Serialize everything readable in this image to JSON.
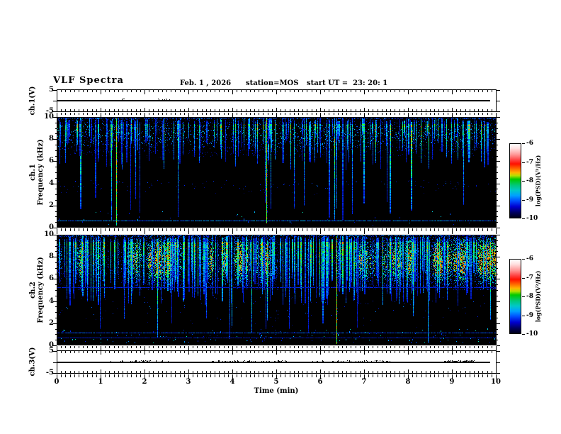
{
  "header": {
    "title": "VLF Spectra",
    "date": "Feb. 1 , 2026",
    "station": "station=MOS",
    "start_ut": "start UT =  23: 20: 1"
  },
  "x_axis": {
    "label": "Time (min)",
    "min": 0,
    "max": 10,
    "tick_labels": [
      "0",
      "1",
      "2",
      "3",
      "4",
      "5",
      "6",
      "7",
      "8",
      "9",
      "10"
    ],
    "minor_step_min": 0.1
  },
  "colorbar": {
    "label": "log(PSD)(V²/Hz)",
    "tick_labels": [
      "-6",
      "-7",
      "-8",
      "-9",
      "-10"
    ],
    "range": [
      -6,
      -10
    ],
    "gradient_stops": [
      [
        0,
        "#ffffff"
      ],
      [
        6,
        "#ffe2e2"
      ],
      [
        14,
        "#ff9c9c"
      ],
      [
        22,
        "#ff4040"
      ],
      [
        27,
        "#ff1000"
      ],
      [
        33,
        "#ff6000"
      ],
      [
        39,
        "#ffb400"
      ],
      [
        43,
        "#b4e000"
      ],
      [
        48,
        "#00c800"
      ],
      [
        56,
        "#00c87a"
      ],
      [
        63,
        "#00c8c8"
      ],
      [
        70,
        "#00a0ff"
      ],
      [
        77,
        "#0050ff"
      ],
      [
        85,
        "#0000d0"
      ],
      [
        93,
        "#000060"
      ],
      [
        100,
        "#000018"
      ]
    ]
  },
  "panels": {
    "ch1v": {
      "name": "ch.1(V)",
      "y_tick_labels": [
        "5",
        "-5"
      ],
      "y_range_V": [
        -5,
        5
      ]
    },
    "spec1": {
      "line1": "ch.1",
      "line2": "Frequency (kHz)",
      "y_tick_labels": [
        "10",
        "8",
        "6",
        "4",
        "2",
        "0"
      ],
      "y_range_kHz": [
        0,
        10
      ]
    },
    "spec2": {
      "line1": "ch.2",
      "line2": "Frequency (kHz)",
      "y_tick_labels": [
        "10",
        "8",
        "6",
        "4",
        "2",
        "0"
      ],
      "y_range_kHz": [
        0,
        10
      ]
    },
    "ch3v": {
      "name": "ch.3(V)",
      "y_tick_labels": [
        "5",
        "-5"
      ],
      "y_range_V": [
        -5,
        5
      ]
    }
  },
  "chart_data": [
    {
      "type": "line",
      "name": "ch.1 voltage waveform",
      "x_range_min": [
        0,
        10
      ],
      "y_range_V": [
        -5,
        5
      ],
      "value_V": 0,
      "trace_end_min": 9.87,
      "seed": 3,
      "blips": 12,
      "blip_zones_min": [
        [
          1.3,
          1.6
        ],
        [
          2.3,
          2.6
        ]
      ]
    },
    {
      "type": "heatmap",
      "name": "ch.1 VLF spectrogram",
      "x_range_min": [
        0,
        10
      ],
      "y_range_kHz": [
        0,
        10
      ],
      "z_label": "log(PSD)(V²/Hz)",
      "z_range": [
        -10,
        -6
      ],
      "background_z": -10,
      "render": {
        "seed": 20260201,
        "streaks": 185,
        "streak_bottom_kHz": [
          5.2,
          8.6
        ],
        "deep_streak_prob": 0.1,
        "strength": [
          0.35,
          1.0
        ],
        "speckle": {
          "band_kHz": [
            6.3,
            9.95
          ],
          "density": 0.12,
          "amp": 0.5,
          "col_mod": false
        },
        "speckle2": {
          "band_kHz": [
            2.8,
            4.3
          ],
          "density": 0.018,
          "amp": 0.32,
          "col_mod": false
        },
        "h_lines": [
          {
            "kHz": 0.55,
            "strength": 0.42
          }
        ],
        "events": [
          {
            "t_min": 1.34,
            "bottom_kHz": 0.1,
            "strength": 0.95
          },
          {
            "t_min": 4.76,
            "bottom_kHz": 0.3,
            "strength": 0.95
          },
          {
            "t_min": 6.35,
            "bottom_kHz": 1.7,
            "strength": 0.5
          }
        ],
        "bottom_dots": 35,
        "top_edge": true
      }
    },
    {
      "type": "heatmap",
      "name": "ch.2 VLF spectrogram",
      "x_range_min": [
        0,
        10
      ],
      "y_range_kHz": [
        0,
        10
      ],
      "z_label": "log(PSD)(V²/Hz)",
      "z_range": [
        -10,
        -6
      ],
      "background_z": -10,
      "render": {
        "seed": 424242,
        "streaks": 250,
        "streak_bottom_kHz": [
          3.6,
          6.8
        ],
        "deep_streak_prob": 0.07,
        "strength": [
          0.4,
          1.0
        ],
        "speckle": {
          "band_kHz": [
            5.0,
            9.9
          ],
          "density": 0.55,
          "amp": 0.85,
          "col_mod": true
        },
        "speckle2": {
          "band_kHz": [
            1.5,
            4.6
          ],
          "density": 0.007,
          "amp": 0.35,
          "col_mod": false
        },
        "h_lines": [
          {
            "kHz": 5.2,
            "strength": 0.25
          },
          {
            "kHz": 1.05,
            "strength": 0.35
          },
          {
            "kHz": 0.6,
            "strength": 0.2
          }
        ],
        "events": [
          {
            "t_min": 6.37,
            "bottom_kHz": 0.05,
            "strength": 1.0
          },
          {
            "t_min": 8.45,
            "bottom_kHz": 0.2,
            "strength": 0.55
          }
        ],
        "bottom_dots": 150,
        "top_edge": true
      }
    },
    {
      "type": "line",
      "name": "ch.3 voltage waveform",
      "x_range_min": [
        0,
        10
      ],
      "y_range_V": [
        -5,
        5
      ],
      "value_V": 0,
      "trace_end_min": 9.87,
      "seed": 9,
      "blips": 170,
      "blip_zones_min": [
        [
          1.2,
          2.6
        ],
        [
          3.5,
          5.3
        ],
        [
          5.8,
          7.6
        ],
        [
          8.8,
          9.5
        ]
      ]
    }
  ]
}
